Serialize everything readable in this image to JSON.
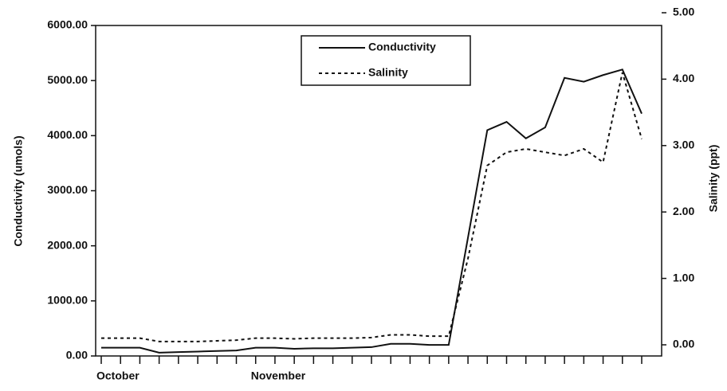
{
  "chart_data": {
    "type": "line",
    "categories": [
      "October",
      null,
      null,
      null,
      null,
      null,
      null,
      null,
      "November",
      null,
      null,
      null,
      null,
      null,
      null,
      null,
      null,
      null,
      null,
      null,
      null,
      null,
      null,
      null,
      null,
      null,
      null,
      null,
      null
    ],
    "series": [
      {
        "name": "Conductivity",
        "color": "#111111",
        "dash": "solid",
        "values": [
          150,
          150,
          150,
          60,
          70,
          80,
          90,
          100,
          150,
          150,
          130,
          140,
          140,
          150,
          160,
          220,
          220,
          200,
          200,
          2150,
          4100,
          4250,
          3950,
          4150,
          5050,
          4980,
          5100,
          5200,
          4400
        ]
      },
      {
        "name": "Salinity",
        "color": "#111111",
        "dash": "dotted",
        "axis": "y2",
        "values": [
          0.1,
          0.1,
          0.1,
          0.05,
          0.05,
          0.05,
          0.06,
          0.07,
          0.1,
          0.1,
          0.09,
          0.1,
          0.1,
          0.1,
          0.11,
          0.15,
          0.15,
          0.13,
          0.13,
          1.3,
          2.7,
          2.9,
          2.95,
          2.9,
          2.85,
          2.95,
          2.75,
          4.1,
          3.1
        ]
      }
    ],
    "ylabel": "Conductivity (umols)",
    "y2label": "Salinity (ppt)",
    "ylim": [
      0,
      6000
    ],
    "yticks": [
      {
        "value": 0,
        "label": "0.00"
      },
      {
        "value": 1000,
        "label": "1000.00"
      },
      {
        "value": 2000,
        "label": "2000.00"
      },
      {
        "value": 3000,
        "label": "3000.00"
      },
      {
        "value": 4000,
        "label": "4000.00"
      },
      {
        "value": 5000,
        "label": "5000.00"
      },
      {
        "value": 6000,
        "label": "6000.00"
      }
    ],
    "y2lim": [
      0,
      5
    ],
    "y2ticks": [
      {
        "value": 0,
        "label": "0.00"
      },
      {
        "value": 1,
        "label": "1.00"
      },
      {
        "value": 2,
        "label": "2.00"
      },
      {
        "value": 3,
        "label": "3.00"
      },
      {
        "value": 4,
        "label": "4.00"
      },
      {
        "value": 5,
        "label": "5.00"
      }
    ],
    "legend": "top"
  }
}
